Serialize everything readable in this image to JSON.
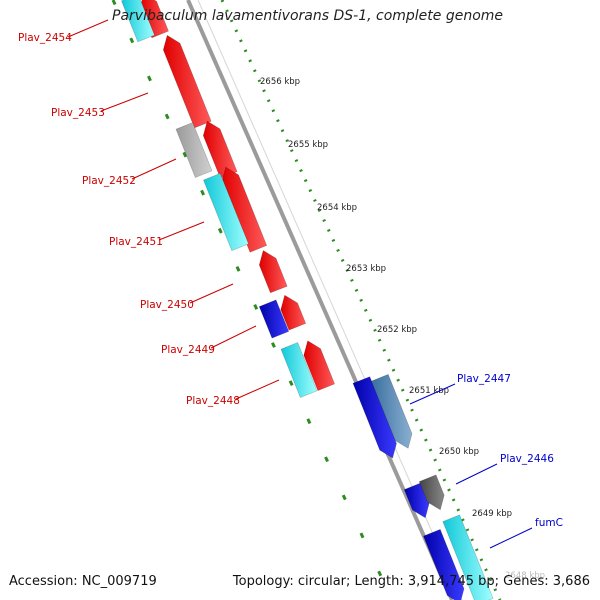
{
  "title": "Parvibaculum lavamentivorans DS-1, complete genome",
  "footer": {
    "accession": "Accession: NC_009719",
    "topology": "Topology: circular; Length: 3,914,745 bp; Genes: 3,686"
  },
  "colors": {
    "reverse_label": "#cc0000",
    "forward_label": "#0000cc",
    "tick_green": "#2e8b22",
    "backbone": "#8c8c8c"
  },
  "ticks": [
    {
      "label": "2656 kbp"
    },
    {
      "label": "2655 kbp"
    },
    {
      "label": "2654 kbp"
    },
    {
      "label": "2653 kbp"
    },
    {
      "label": "2652 kbp"
    },
    {
      "label": "2651 kbp"
    },
    {
      "label": "2650 kbp"
    },
    {
      "label": "2649 kbp"
    },
    {
      "label": "2648 kbp"
    }
  ],
  "genes": [
    {
      "label": "Plav_2454",
      "strand": "reverse"
    },
    {
      "label": "Plav_2453",
      "strand": "reverse"
    },
    {
      "label": "Plav_2452",
      "strand": "reverse"
    },
    {
      "label": "Plav_2451",
      "strand": "reverse"
    },
    {
      "label": "Plav_2450",
      "strand": "reverse"
    },
    {
      "label": "Plav_2449",
      "strand": "reverse"
    },
    {
      "label": "Plav_2448",
      "strand": "reverse"
    },
    {
      "label": "Plav_2447",
      "strand": "forward"
    },
    {
      "label": "Plav_2446",
      "strand": "forward"
    },
    {
      "label": "fumC",
      "strand": "forward"
    }
  ]
}
